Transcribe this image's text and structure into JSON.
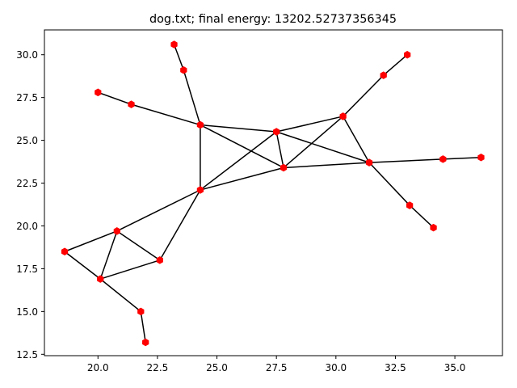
{
  "chart_data": {
    "type": "scatter",
    "title": "dog.txt; final energy: 13202.52737356345",
    "xlabel": "",
    "ylabel": "",
    "xlim": [
      17.75,
      37.0
    ],
    "ylim": [
      12.42,
      31.45
    ],
    "xticks": [
      20.0,
      22.5,
      25.0,
      27.5,
      30.0,
      32.5,
      35.0
    ],
    "xtick_labels": [
      "20.0",
      "22.5",
      "25.0",
      "27.5",
      "30.0",
      "32.5",
      "35.0"
    ],
    "yticks": [
      12.5,
      15.0,
      17.5,
      20.0,
      22.5,
      25.0,
      27.5,
      30.0
    ],
    "ytick_labels": [
      "12.5",
      "15.0",
      "17.5",
      "20.0",
      "22.5",
      "25.0",
      "27.5",
      "30.0"
    ],
    "grid": false,
    "legend": "none",
    "node_color": "#ff0000",
    "edge_color": "#000000",
    "nodes": [
      {
        "id": 0,
        "x": 24.3,
        "y": 25.9
      },
      {
        "id": 1,
        "x": 27.5,
        "y": 25.5
      },
      {
        "id": 2,
        "x": 27.8,
        "y": 23.4
      },
      {
        "id": 3,
        "x": 24.3,
        "y": 22.1
      },
      {
        "id": 4,
        "x": 30.3,
        "y": 26.4
      },
      {
        "id": 5,
        "x": 31.4,
        "y": 23.7
      },
      {
        "id": 6,
        "x": 23.2,
        "y": 30.6
      },
      {
        "id": 7,
        "x": 23.6,
        "y": 29.1
      },
      {
        "id": 8,
        "x": 20.0,
        "y": 27.8
      },
      {
        "id": 9,
        "x": 21.4,
        "y": 27.1
      },
      {
        "id": 10,
        "x": 33.0,
        "y": 30.0
      },
      {
        "id": 11,
        "x": 32.0,
        "y": 28.8
      },
      {
        "id": 12,
        "x": 36.1,
        "y": 24.0
      },
      {
        "id": 13,
        "x": 34.5,
        "y": 23.9
      },
      {
        "id": 14,
        "x": 33.1,
        "y": 21.2
      },
      {
        "id": 15,
        "x": 34.1,
        "y": 19.9
      },
      {
        "id": 16,
        "x": 20.8,
        "y": 19.7
      },
      {
        "id": 17,
        "x": 18.6,
        "y": 18.5
      },
      {
        "id": 18,
        "x": 20.1,
        "y": 16.9
      },
      {
        "id": 19,
        "x": 22.6,
        "y": 18.0
      },
      {
        "id": 20,
        "x": 21.8,
        "y": 15.0
      },
      {
        "id": 21,
        "x": 22.0,
        "y": 13.2
      }
    ],
    "edges": [
      [
        6,
        7
      ],
      [
        7,
        0
      ],
      [
        8,
        9
      ],
      [
        9,
        0
      ],
      [
        0,
        1
      ],
      [
        0,
        2
      ],
      [
        0,
        3
      ],
      [
        1,
        2
      ],
      [
        1,
        3
      ],
      [
        1,
        4
      ],
      [
        1,
        5
      ],
      [
        2,
        4
      ],
      [
        2,
        5
      ],
      [
        2,
        3
      ],
      [
        4,
        5
      ],
      [
        4,
        11
      ],
      [
        11,
        10
      ],
      [
        5,
        13
      ],
      [
        13,
        12
      ],
      [
        5,
        14
      ],
      [
        14,
        15
      ],
      [
        3,
        16
      ],
      [
        3,
        19
      ],
      [
        16,
        17
      ],
      [
        16,
        18
      ],
      [
        16,
        19
      ],
      [
        17,
        18
      ],
      [
        18,
        19
      ],
      [
        18,
        20
      ],
      [
        20,
        21
      ]
    ]
  }
}
